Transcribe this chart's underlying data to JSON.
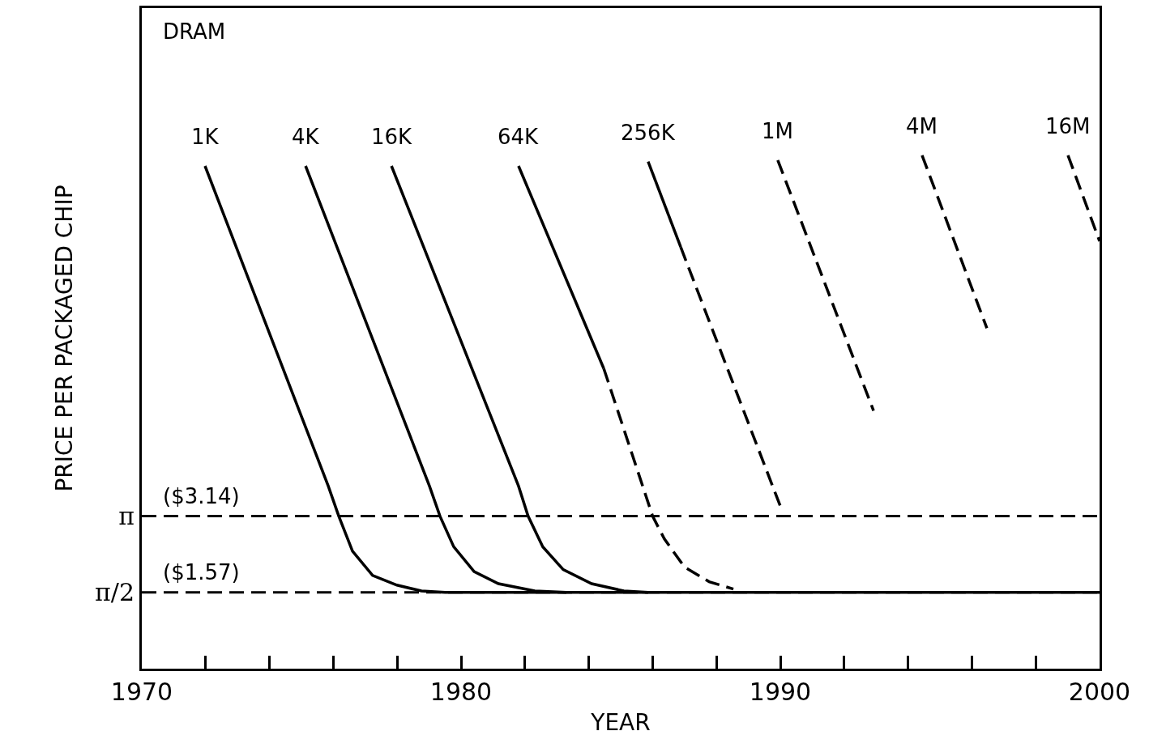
{
  "chart_data": {
    "type": "line",
    "ylabel": "PRICE PER PACKAGED CHIP",
    "xlabel": "YEAR",
    "annotations": [
      "DRAM"
    ],
    "xlim": [
      1970,
      2000
    ],
    "xticks": [
      1970,
      {
        "value": 1972,
        "label": null
      },
      {
        "value": 1974,
        "label": null
      },
      {
        "value": 1976,
        "label": null
      },
      {
        "value": 1978,
        "label": null
      },
      1980,
      {
        "value": 1982,
        "label": null
      },
      {
        "value": 1984,
        "label": null
      },
      {
        "value": 1986,
        "label": null
      },
      {
        "value": 1988,
        "label": null
      },
      1990,
      {
        "value": 1992,
        "label": null
      },
      {
        "value": 1994,
        "label": null
      },
      {
        "value": 1996,
        "label": null
      },
      {
        "value": 1998,
        "label": null
      },
      2000
    ],
    "ylim": [
      0,
      13.6
    ],
    "yticks": [
      {
        "value": 1.57,
        "label": "π/2"
      },
      {
        "value": 3.14,
        "label": "π"
      }
    ],
    "grid": false,
    "legend": false,
    "marker": "none",
    "ref_lines": [
      {
        "axis": "y",
        "value": 3.14,
        "label": "($3.14)",
        "color": "#000000",
        "line_style": "dashed"
      },
      {
        "axis": "y",
        "value": 1.57,
        "label": "($1.57)",
        "color": "#000000",
        "line_style": "dashed"
      }
    ],
    "series": [
      {
        "name": "1K",
        "color": "#000000",
        "line_style": "solid",
        "x": [
          1971.98,
          1975.84,
          1976.17,
          1976.6,
          1977.23,
          1977.99,
          1978.76,
          1979.5,
          2000
        ],
        "values": [
          10.35,
          3.76,
          3.14,
          2.42,
          1.92,
          1.72,
          1.6,
          1.57,
          1.57
        ]
      },
      {
        "name": "4K",
        "color": "#000000",
        "line_style": "solid",
        "x": [
          1975.13,
          1979.01,
          1979.34,
          1979.77,
          1980.41,
          1981.17,
          1982.31,
          1983.3
        ],
        "values": [
          10.35,
          3.76,
          3.14,
          2.51,
          2.0,
          1.75,
          1.6,
          1.57
        ]
      },
      {
        "name": "16K",
        "color": "#000000",
        "line_style": "solid",
        "x": [
          1977.82,
          1981.8,
          1982.1,
          1982.56,
          1983.2,
          1984.09,
          1985.1,
          1985.86
        ],
        "values": [
          10.35,
          3.76,
          3.14,
          2.51,
          2.04,
          1.75,
          1.6,
          1.57
        ]
      },
      {
        "name": "64K",
        "color": "#000000",
        "line_style": "solid",
        "x": [
          1981.8,
          1984.47
        ],
        "values": [
          10.35,
          6.18
        ]
      },
      {
        "color": "#000000",
        "line_style": "dashed",
        "x": [
          1984.47,
          1986.0,
          1986.37,
          1987.0,
          1987.77,
          1988.53
        ],
        "values": [
          6.18,
          3.14,
          2.67,
          2.09,
          1.79,
          1.64
        ]
      },
      {
        "name": "256K",
        "color": "#000000",
        "line_style": "solid",
        "x": [
          1985.86,
          1986.88
        ],
        "values": [
          10.44,
          8.68
        ]
      },
      {
        "color": "#000000",
        "line_style": "dashed",
        "x": [
          1986.88,
          1990.05
        ],
        "values": [
          8.68,
          3.26
        ]
      },
      {
        "name": "1M",
        "color": "#000000",
        "line_style": "dashed",
        "x": [
          1989.92,
          1992.92
        ],
        "values": [
          10.47,
          5.31
        ]
      },
      {
        "name": "4M",
        "color": "#000000",
        "line_style": "dashed",
        "x": [
          1994.44,
          1996.47
        ],
        "values": [
          10.57,
          7.01
        ]
      },
      {
        "name": "16M",
        "color": "#000000",
        "line_style": "dashed",
        "x": [
          1999.01,
          2000.0
        ],
        "values": [
          10.57,
          8.8
        ]
      }
    ]
  }
}
